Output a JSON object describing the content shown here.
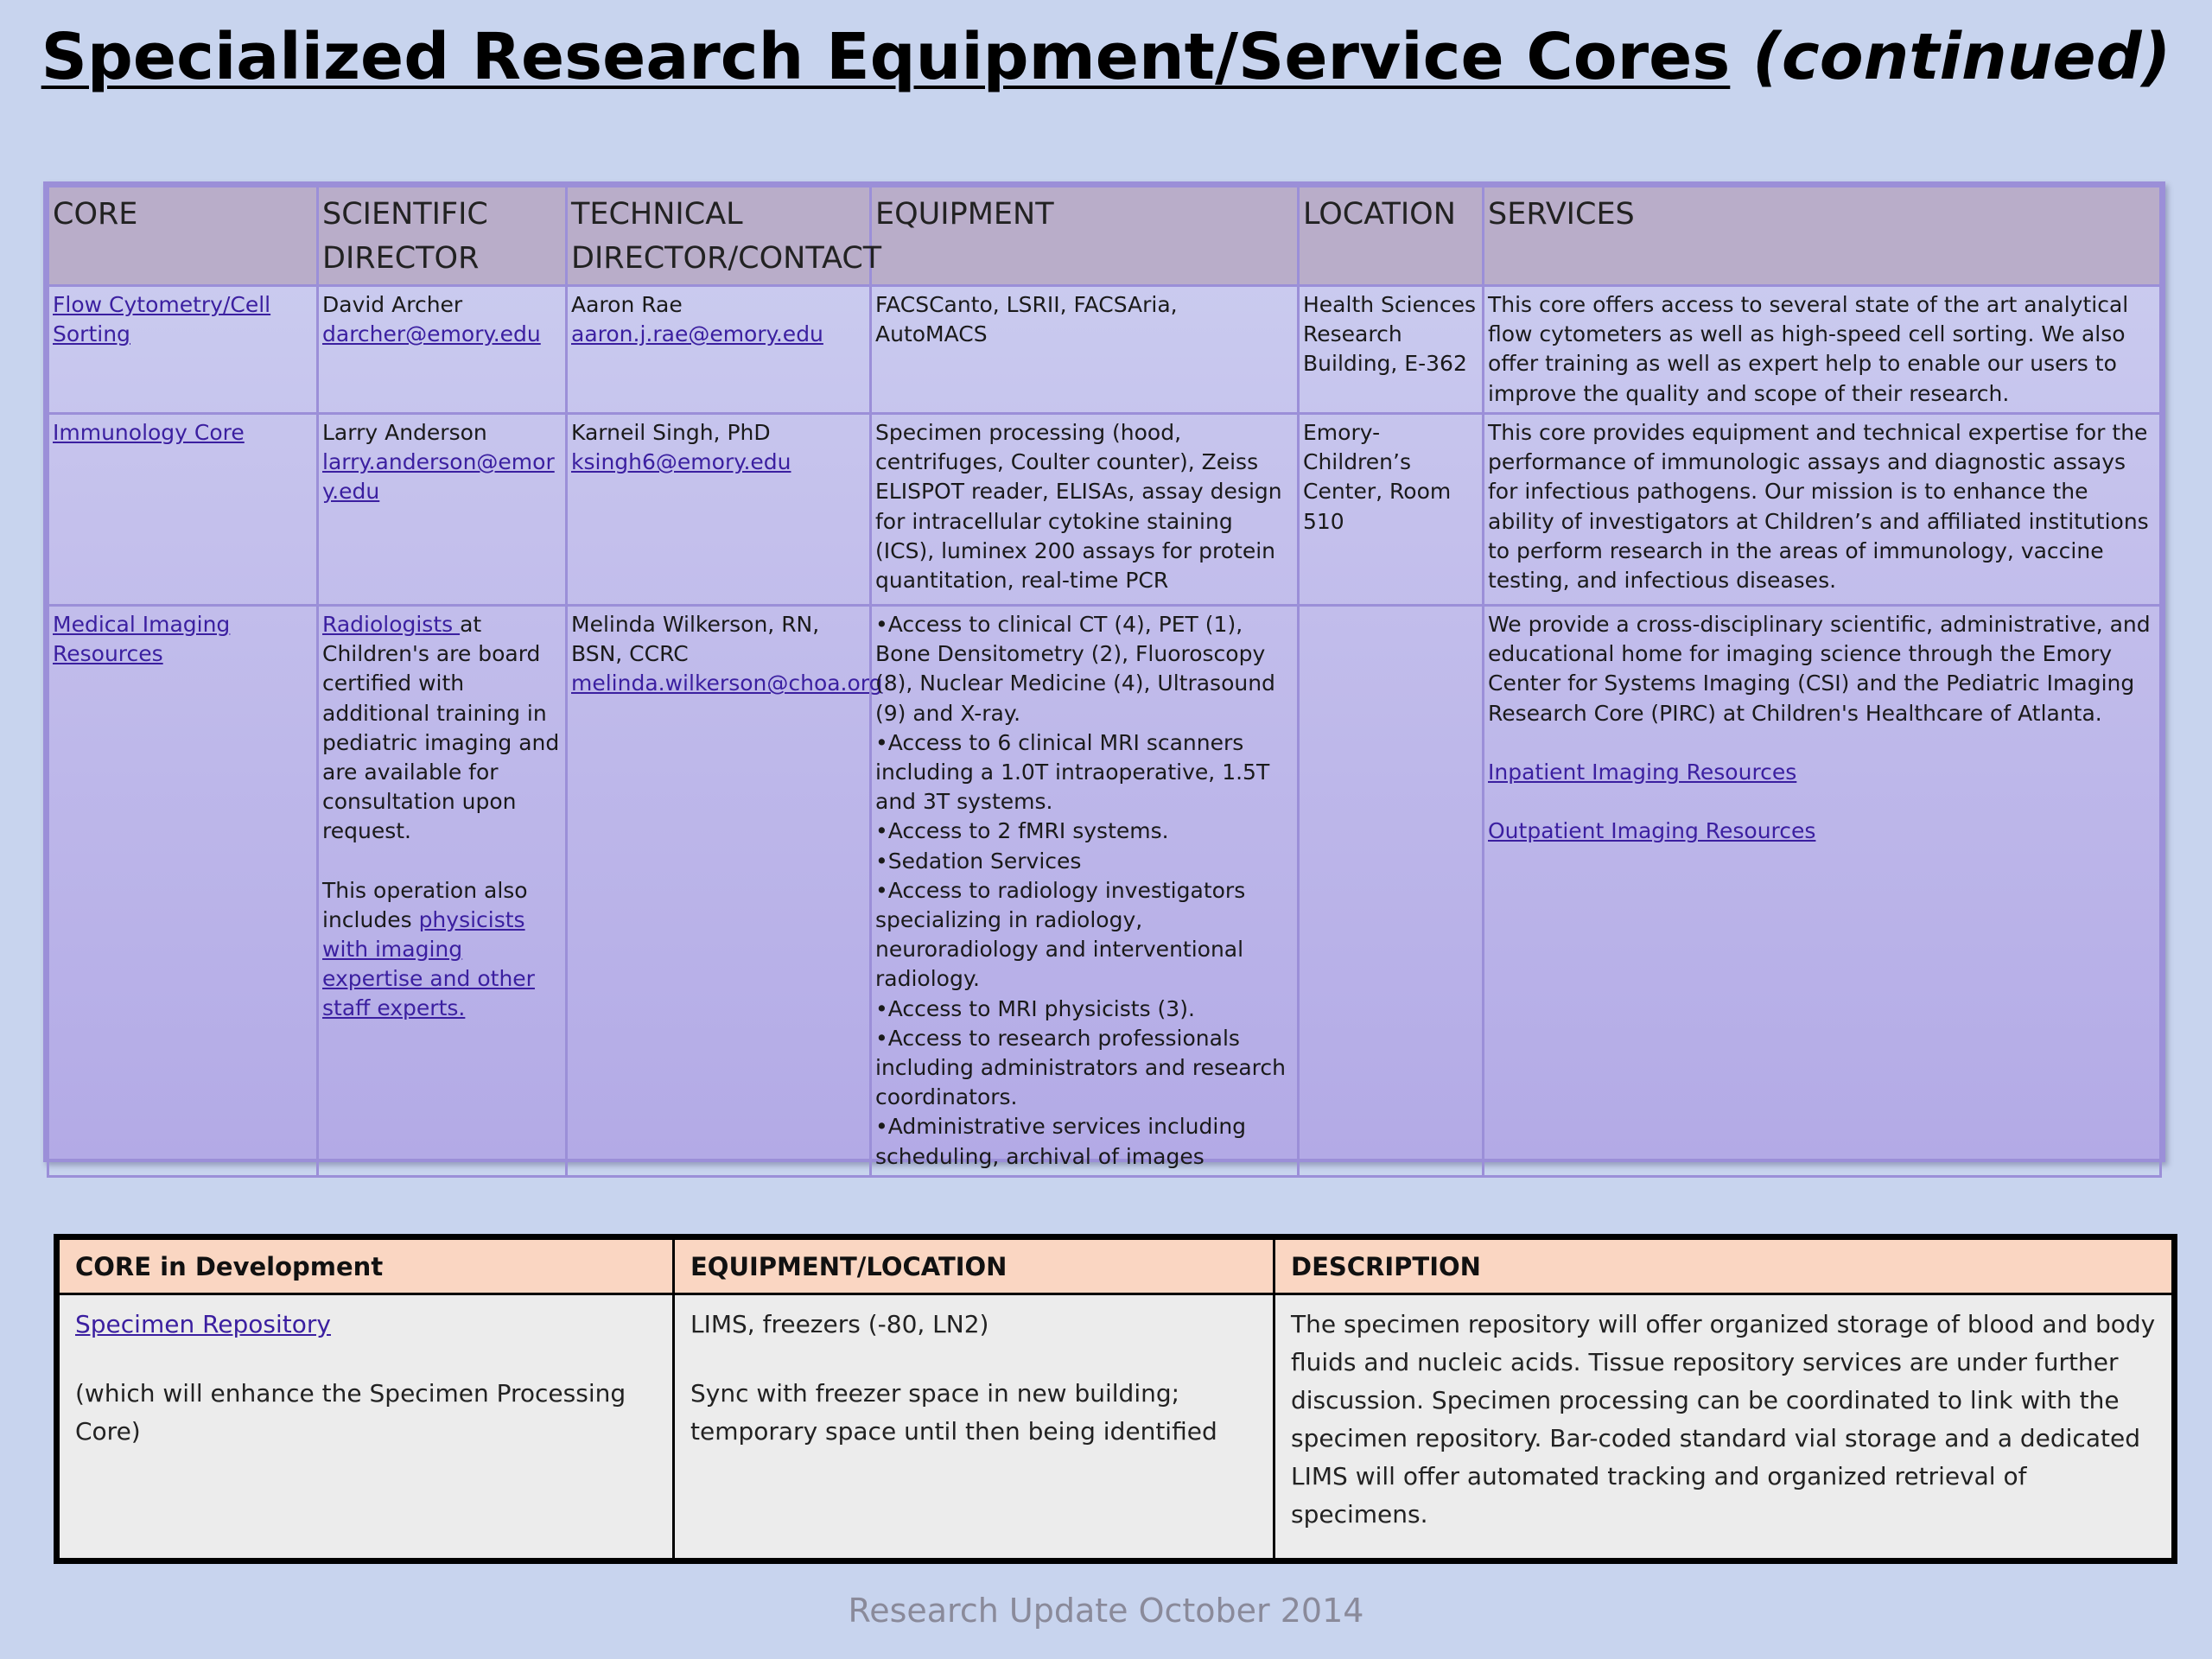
{
  "title": {
    "main": "Specialized Research Equipment/Service Cores",
    "continued": "(continued)"
  },
  "cores_table": {
    "headers": [
      "CORE",
      "SCIENTIFIC DIRECTOR",
      "TECHNICAL DIRECTOR/CONTACT",
      "EQUIPMENT",
      "LOCATION",
      "SERVICES"
    ],
    "rows": [
      {
        "core": "Flow Cytometry/Cell Sorting",
        "sci_name": "David Archer",
        "sci_email": "darcher@emory.edu",
        "tech_name": "Aaron Rae",
        "tech_email": "aaron.j.rae@emory.edu",
        "equipment": "FACSCanto, LSRII, FACSAria, AutoMACS",
        "location": "Health Sciences Research Building, E-362",
        "services": "This core offers access to several state of the art analytical flow cytometers as well as high-speed cell sorting. We also offer training as well as expert help to enable our users to improve the quality and scope of their research."
      },
      {
        "core": "Immunology Core",
        "sci_name": "Larry Anderson",
        "sci_email": "larry.anderson@emory.edu",
        "tech_name": "Karneil Singh, PhD",
        "tech_email": "ksingh6@emory.edu",
        "equipment": "Specimen processing (hood, centrifuges, Coulter counter), Zeiss ELISPOT reader, ELISAs, assay design for intracellular cytokine staining (ICS), luminex 200 assays for protein quantitation, real-time PCR",
        "location": "Emory-Children’s Center, Room 510",
        "services": "This core provides equipment and technical expertise for the performance of immunologic assays and diagnostic assays for infectious pathogens. Our mission is to enhance the ability of investigators at Children’s and affiliated institutions to perform research in the areas of immunology, vaccine testing, and infectious diseases."
      },
      {
        "core": "Medical Imaging Resources",
        "sci_link": "Radiologists ",
        "sci_text": "at Children's are board certified with additional training in pediatric imaging and are available for consultation upon request.",
        "sci_text2": "This operation also includes ",
        "sci_link2": "physicists with imaging expertise and other staff experts.",
        "tech_name": "Melinda  Wilkerson, RN, BSN, CCRC",
        "tech_email": "melinda.wilkerson@choa.org",
        "equipment_items": [
          "Access to clinical CT (4), PET (1), Bone Densitometry (2), Fluoroscopy (8), Nuclear Medicine (4), Ultrasound (9) and X-ray.",
          "Access to 6 clinical MRI scanners including a 1.0T intraoperative, 1.5T and 3T systems.",
          "Access to 2 fMRI systems.",
          "Sedation Services",
          "Access to radiology investigators specializing in radiology, neuroradiology and interventional radiology.",
          "Access to MRI physicists (3).",
          "Access to research professionals including administrators and research coordinators.",
          "Administrative services including scheduling, archival of images"
        ],
        "location": "",
        "services": "We provide a cross-disciplinary scientific, administrative, and educational home for imaging science through the Emory Center for Systems Imaging (CSI) and the Pediatric Imaging Research Core (PIRC) at Children's Healthcare of Atlanta.",
        "services_link1": "Inpatient Imaging Resources",
        "services_link2": "Outpatient Imaging Resources"
      }
    ]
  },
  "dev_table": {
    "headers": [
      "CORE in Development",
      "EQUIPMENT/LOCATION",
      "DESCRIPTION"
    ],
    "row": {
      "core_link": "Specimen Repository",
      "core_note": "(which will enhance the Specimen Processing Core)",
      "equipment": "LIMS, freezers (-80, LN2)",
      "location": "Sync with freezer space in new building; temporary space until then being identified",
      "description": "The specimen repository will offer organized storage of blood and body fluids and nucleic acids. Tissue repository services are under further discussion. Specimen processing can be coordinated to link with the specimen repository. Bar-coded standard vial storage and a dedicated LIMS will offer automated tracking and organized retrieval of specimens."
    }
  },
  "footer": "Research Update October 2014",
  "colors": {
    "background": "#c8d4ee",
    "table_border": "#9b8fd8",
    "header_fill": "#b9adc9",
    "link": "#3b1fa0",
    "dev_header_fill": "#fad6c2"
  }
}
